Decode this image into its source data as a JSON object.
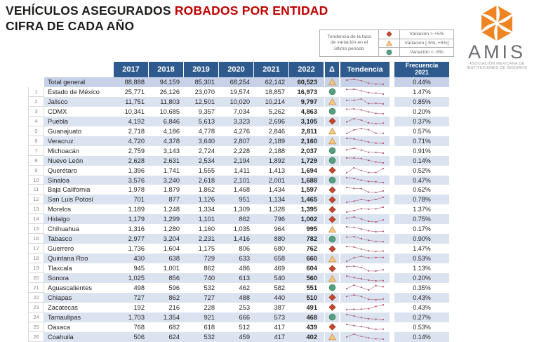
{
  "title": {
    "part1": "VEHÍCULOS ASEGURADOS ",
    "part2": "ROBADOS POR ENTIDAD",
    "line2": "CIFRA DE CADA AÑO"
  },
  "legend": {
    "label_lines": [
      "Tendencia de la tasa",
      "de variación en el",
      "último periodo"
    ],
    "items": [
      {
        "symbol": "diamond",
        "text": "Variación > +5%"
      },
      {
        "symbol": "triangle",
        "text": "Variación [-5%, +5%]"
      },
      {
        "symbol": "circle",
        "text": "Variación < -5%"
      }
    ]
  },
  "logo": {
    "word": "AMIS",
    "caption_line1": "ASOCIACIÓN MEXICANA DE",
    "caption_line2": "INSTITUCIONES DE SEGUROS"
  },
  "colors": {
    "header_blue": "#2e5a8e",
    "stripe_blue": "#dbe3f1",
    "total_blue": "#c7d2e8",
    "title_red": "#c00000",
    "diamond_red": "#c8472e",
    "triangle_amber": "#f4c984",
    "circle_green": "#56a080",
    "spark_dot": "#c23a67",
    "logo_orange": "#ef8522"
  },
  "table": {
    "year_headers": [
      "2017",
      "2018",
      "2019",
      "2020",
      "2021",
      "2022"
    ],
    "delta_header": "Δ",
    "trend_header": "Tendencia",
    "freq_header_line1": "Frecuencia",
    "freq_header_line2": "2021",
    "total_row": {
      "name": "Total general",
      "values": [
        "88,888",
        "94,159",
        "85,301",
        "68,254",
        "62,142",
        "60,523"
      ],
      "delta": "triangle",
      "freq": "0.44%"
    },
    "rows": [
      {
        "rank": 1,
        "name": "Estado de México",
        "values": [
          "25,771",
          "26,126",
          "23,070",
          "19,574",
          "18,857",
          "16,973"
        ],
        "delta": "circle",
        "freq": "1.47%"
      },
      {
        "rank": 2,
        "name": "Jalisco",
        "values": [
          "11,751",
          "11,803",
          "12,501",
          "10,020",
          "10,214",
          "9,797"
        ],
        "delta": "triangle",
        "freq": "0.85%"
      },
      {
        "rank": 3,
        "name": "CDMX",
        "values": [
          "10,341",
          "10,685",
          "9,357",
          "7,034",
          "5,262",
          "4,863"
        ],
        "delta": "circle",
        "freq": "0.20%"
      },
      {
        "rank": 4,
        "name": "Puebla",
        "values": [
          "4,192",
          "6,846",
          "5,613",
          "3,323",
          "2,696",
          "3,105"
        ],
        "delta": "diamond",
        "freq": "0.37%"
      },
      {
        "rank": 5,
        "name": "Guanajuato",
        "values": [
          "2,718",
          "4,186",
          "4,778",
          "4,276",
          "2,846",
          "2,811"
        ],
        "delta": "triangle",
        "freq": "0.57%"
      },
      {
        "rank": 6,
        "name": "Veracruz",
        "values": [
          "4,720",
          "4,378",
          "3,640",
          "2,807",
          "2,189",
          "2,160"
        ],
        "delta": "triangle",
        "freq": "0.71%"
      },
      {
        "rank": 7,
        "name": "Michoacán",
        "values": [
          "2,759",
          "3,143",
          "2,724",
          "2,228",
          "2,188",
          "2,037"
        ],
        "delta": "circle",
        "freq": "0.91%"
      },
      {
        "rank": 8,
        "name": "Nuevo León",
        "values": [
          "2,628",
          "2,631",
          "2,534",
          "2,194",
          "1,892",
          "1,729"
        ],
        "delta": "circle",
        "freq": "0.14%"
      },
      {
        "rank": 9,
        "name": "Querétaro",
        "values": [
          "1,396",
          "1,741",
          "1,555",
          "1,411",
          "1,413",
          "1,694"
        ],
        "delta": "diamond",
        "freq": "0.52%"
      },
      {
        "rank": 10,
        "name": "Sinaloa",
        "values": [
          "3,576",
          "3,240",
          "2,618",
          "2,101",
          "2,001",
          "1,688"
        ],
        "delta": "circle",
        "freq": "0.47%"
      },
      {
        "rank": 11,
        "name": "Baja California",
        "values": [
          "1,978",
          "1,879",
          "1,862",
          "1,468",
          "1,434",
          "1,597"
        ],
        "delta": "diamond",
        "freq": "0.62%"
      },
      {
        "rank": 12,
        "name": "San Luis Potosí",
        "values": [
          "701",
          "877",
          "1,126",
          "951",
          "1,134",
          "1,465"
        ],
        "delta": "diamond",
        "freq": "0.78%"
      },
      {
        "rank": 13,
        "name": "Morelos",
        "values": [
          "1,189",
          "1,248",
          "1,334",
          "1,309",
          "1,328",
          "1,395"
        ],
        "delta": "diamond",
        "freq": "1.37%"
      },
      {
        "rank": 14,
        "name": "Hidalgo",
        "values": [
          "1,179",
          "1,299",
          "1,101",
          "862",
          "796",
          "1,002"
        ],
        "delta": "diamond",
        "freq": "0.75%"
      },
      {
        "rank": 15,
        "name": "Chihuahua",
        "values": [
          "1,316",
          "1,280",
          "1,160",
          "1,035",
          "964",
          "995"
        ],
        "delta": "triangle",
        "freq": "0.17%"
      },
      {
        "rank": 16,
        "name": "Tabasco",
        "values": [
          "2,977",
          "3,204",
          "2,231",
          "1,416",
          "880",
          "782"
        ],
        "delta": "circle",
        "freq": "0.90%"
      },
      {
        "rank": 17,
        "name": "Guerrero",
        "values": [
          "1,736",
          "1,604",
          "1,175",
          "806",
          "680",
          "762"
        ],
        "delta": "diamond",
        "freq": "1.47%"
      },
      {
        "rank": 18,
        "name": "Quintana Roo",
        "values": [
          "430",
          "638",
          "729",
          "633",
          "658",
          "660"
        ],
        "delta": "triangle",
        "freq": "0.53%"
      },
      {
        "rank": 19,
        "name": "Tlaxcala",
        "values": [
          "945",
          "1,001",
          "862",
          "486",
          "469",
          "604"
        ],
        "delta": "diamond",
        "freq": "1.13%"
      },
      {
        "rank": 20,
        "name": "Sonora",
        "values": [
          "1,025",
          "856",
          "740",
          "613",
          "540",
          "560"
        ],
        "delta": "triangle",
        "freq": "0.20%"
      },
      {
        "rank": 21,
        "name": "Aguascalientes",
        "values": [
          "498",
          "596",
          "532",
          "462",
          "582",
          "551"
        ],
        "delta": "circle",
        "freq": "0.35%"
      },
      {
        "rank": 22,
        "name": "Chiapas",
        "values": [
          "727",
          "862",
          "727",
          "488",
          "440",
          "510"
        ],
        "delta": "diamond",
        "freq": "0.43%"
      },
      {
        "rank": 23,
        "name": "Zacatecas",
        "values": [
          "192",
          "216",
          "228",
          "253",
          "387",
          "491"
        ],
        "delta": "diamond",
        "freq": "0.43%"
      },
      {
        "rank": 24,
        "name": "Tamaulipas",
        "values": [
          "1,703",
          "1,354",
          "921",
          "666",
          "573",
          "468"
        ],
        "delta": "circle",
        "freq": "0.27%"
      },
      {
        "rank": 25,
        "name": "Oaxaca",
        "values": [
          "768",
          "682",
          "618",
          "512",
          "417",
          "439"
        ],
        "delta": "diamond",
        "freq": "0.53%"
      },
      {
        "rank": 26,
        "name": "Coahuila",
        "values": [
          "506",
          "624",
          "532",
          "459",
          "417",
          "402"
        ],
        "delta": "triangle",
        "freq": "0.14%"
      }
    ]
  }
}
